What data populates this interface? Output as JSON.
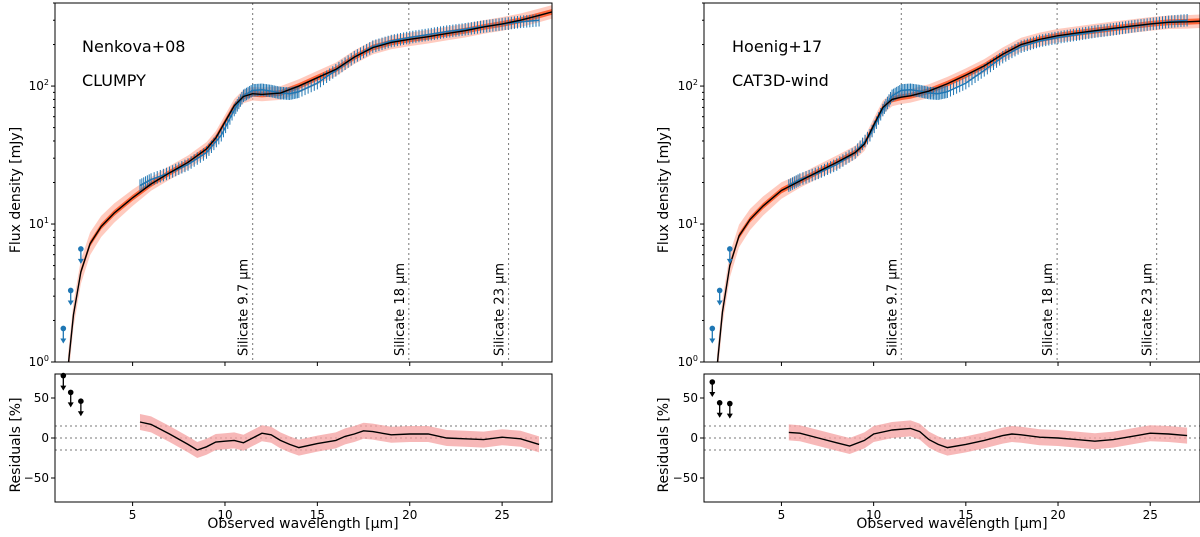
{
  "colors": {
    "model": "#ff5a2a",
    "model_light": "#ffa08a",
    "data": "#1f77b4",
    "best_fit": "#000000",
    "residual_band": "#f4a0a0",
    "guide": "#777777"
  },
  "shared": {
    "xlabel": "Observed wavelength [μm]",
    "ylabel_top": "Flux density [mJy]",
    "ylabel_bottom": "Residuals [%]",
    "xlim": [
      0.8,
      27.7
    ],
    "ylim_top": [
      1,
      400
    ],
    "ylim_bottom": [
      -80,
      80
    ],
    "xticks": [
      5,
      10,
      15,
      20,
      25
    ],
    "yticks_top": [
      {
        "v": 1,
        "label_base": "10",
        "label_exp": "0"
      },
      {
        "v": 10,
        "label_base": "10",
        "label_exp": "1"
      },
      {
        "v": 100,
        "label_base": "10",
        "label_exp": "2"
      }
    ],
    "yticks_bottom": [
      50,
      0,
      -50
    ],
    "residual_guides": [
      15,
      0,
      -15
    ],
    "silicate_lines": [
      {
        "x": 11.5,
        "label": "Silicate 9.7 μm"
      },
      {
        "x": 19.95,
        "label": "Silicate 18 μm"
      },
      {
        "x": 25.35,
        "label": "Silicate 23 μm"
      }
    ]
  },
  "chart_data": [
    {
      "type": "line",
      "title_line1": "Nenkova+08",
      "title_line2": "CLUMPY",
      "observed_flux": {
        "x": [
          5.4,
          6,
          7,
          8,
          9,
          9.8,
          10.5,
          11,
          11.5,
          12,
          12.5,
          13,
          13.5,
          14,
          15,
          16,
          17,
          18,
          19,
          20,
          21,
          22,
          23,
          24,
          25,
          26,
          27
        ],
        "y": [
          19,
          21,
          23.5,
          27,
          33,
          44,
          67,
          85,
          93,
          94,
          92,
          89,
          88,
          91,
          105,
          130,
          162,
          193,
          212,
          225,
          236,
          248,
          258,
          270,
          281,
          292,
          300
        ],
        "err_frac": 0.11
      },
      "upper_limits": {
        "x": [
          1.25,
          1.65,
          2.2
        ],
        "y": [
          1.75,
          3.3,
          6.6
        ]
      },
      "model_best": {
        "x": [
          1.5,
          1.8,
          2.2,
          2.7,
          3.3,
          4,
          5,
          6,
          7,
          8,
          9,
          9.5,
          10,
          10.5,
          11,
          11.5,
          12,
          13,
          14,
          15,
          16,
          17,
          18,
          19,
          20,
          21,
          22,
          23,
          24,
          25,
          26,
          27,
          27.7
        ],
        "y": [
          0.9,
          2.2,
          4.5,
          7.2,
          9.6,
          12,
          15.5,
          19.5,
          23.5,
          28,
          35,
          42,
          55,
          72,
          84,
          88,
          87,
          89,
          100,
          115,
          132,
          162,
          190,
          207,
          218,
          228,
          240,
          252,
          268,
          282,
          300,
          325,
          345
        ]
      },
      "residuals": {
        "x": [
          5.4,
          6,
          7,
          8,
          8.5,
          9,
          9.5,
          10,
          10.5,
          11,
          11.5,
          12,
          12.5,
          13,
          13.5,
          14,
          15,
          16,
          16.5,
          17,
          17.5,
          18,
          19,
          20,
          21,
          22,
          23,
          24,
          25,
          26,
          27
        ],
        "y": [
          20,
          17,
          5,
          -8,
          -15,
          -11,
          -5,
          -4,
          -3,
          -6,
          0,
          6,
          4,
          -3,
          -8,
          -12,
          -7,
          -3,
          2,
          5,
          9,
          8,
          4,
          5,
          5,
          0,
          -1,
          -2,
          1,
          -1,
          -8
        ]
      },
      "residual_upper_limits": {
        "x": [
          1.25,
          1.65,
          2.2
        ],
        "y": [
          78,
          57,
          46
        ]
      }
    },
    {
      "type": "line",
      "title_line1": "Hoenig+17",
      "title_line2": "CAT3D-wind",
      "observed_flux": {
        "x": [
          5.4,
          6,
          7,
          8,
          9,
          9.8,
          10.5,
          11,
          11.5,
          12,
          12.5,
          13,
          13.5,
          14,
          15,
          16,
          17,
          18,
          19,
          20,
          21,
          22,
          23,
          24,
          25,
          26,
          27
        ],
        "y": [
          19,
          21,
          23.5,
          27,
          33,
          44,
          67,
          85,
          93,
          94,
          92,
          89,
          88,
          91,
          105,
          130,
          162,
          193,
          212,
          225,
          236,
          248,
          258,
          270,
          281,
          292,
          300
        ],
        "err_frac": 0.11
      },
      "upper_limits": {
        "x": [
          1.25,
          1.65,
          2.2
        ],
        "y": [
          1.75,
          3.3,
          6.6
        ]
      },
      "model_best": {
        "x": [
          1.5,
          1.8,
          2.2,
          2.7,
          3.3,
          4,
          5,
          6,
          7,
          8,
          9,
          9.5,
          10,
          10.5,
          11,
          11.5,
          12,
          13,
          14,
          15,
          16,
          17,
          18,
          19,
          20,
          21,
          22,
          23,
          24,
          25,
          26,
          27,
          27.7
        ],
        "y": [
          0.9,
          2.3,
          5,
          8.2,
          10.8,
          13.5,
          17.5,
          20.5,
          24,
          28,
          33,
          38,
          52,
          70,
          80,
          83,
          85,
          92,
          104,
          120,
          140,
          170,
          200,
          218,
          232,
          242,
          252,
          262,
          272,
          282,
          290,
          292,
          295
        ]
      },
      "residuals": {
        "x": [
          5.4,
          6,
          7,
          8,
          8.7,
          9.5,
          10,
          11,
          12,
          12.5,
          13,
          13.5,
          14,
          15,
          16,
          17,
          17.5,
          18,
          19,
          20,
          21,
          22,
          23,
          24,
          25,
          26,
          27
        ],
        "y": [
          7,
          6,
          0,
          -6,
          -10,
          -3,
          5,
          10,
          12,
          8,
          -2,
          -8,
          -12,
          -8,
          -3,
          3,
          5,
          4,
          1,
          0,
          -2,
          -4,
          -2,
          2,
          6,
          5,
          3
        ]
      },
      "residual_upper_limits": {
        "x": [
          1.25,
          1.65,
          2.2
        ],
        "y": [
          70,
          44,
          43
        ]
      }
    }
  ]
}
